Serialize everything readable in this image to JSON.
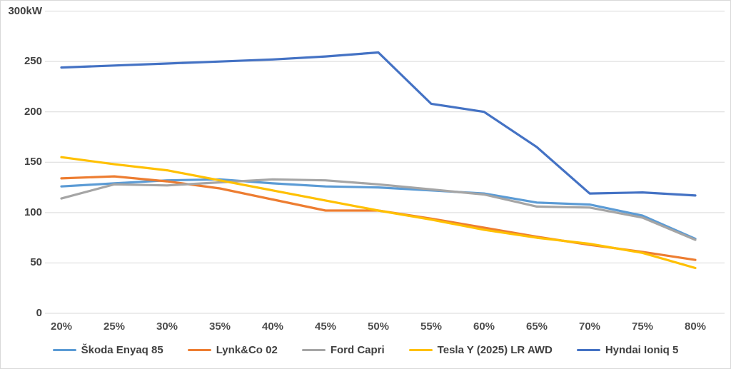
{
  "chart_data": {
    "type": "line",
    "title": "",
    "xlabel": "",
    "ylabel": "300kW",
    "grid": true,
    "legend_position": "bottom",
    "categories": [
      "20%",
      "25%",
      "30%",
      "35%",
      "40%",
      "45%",
      "50%",
      "55%",
      "60%",
      "65%",
      "70%",
      "75%",
      "80%"
    ],
    "y_axis": {
      "min": 0,
      "max": 300,
      "step": 50,
      "ticks": [
        {
          "label": "300kW",
          "value": 300
        },
        {
          "label": "250",
          "value": 250
        },
        {
          "label": "200",
          "value": 200
        },
        {
          "label": "150",
          "value": 150
        },
        {
          "label": "100",
          "value": 100
        },
        {
          "label": "50",
          "value": 50
        },
        {
          "label": "0",
          "value": 0
        }
      ]
    },
    "series": [
      {
        "name": "Škoda Enyaq 85",
        "color": "#5B9BD5",
        "values": [
          126,
          129,
          132,
          133,
          129,
          126,
          125,
          122,
          119,
          110,
          108,
          97,
          74
        ]
      },
      {
        "name": "Lynk&Co 02",
        "color": "#ED7D31",
        "values": [
          134,
          136,
          131,
          124,
          113,
          102,
          102,
          94,
          85,
          76,
          68,
          61,
          53
        ]
      },
      {
        "name": "Ford Capri",
        "color": "#A5A5A5",
        "values": [
          114,
          128,
          127,
          130,
          133,
          132,
          128,
          123,
          118,
          106,
          105,
          95,
          73
        ]
      },
      {
        "name": "Tesla Y (2025) LR AWD",
        "color": "#FFC000",
        "values": [
          155,
          148,
          142,
          132,
          122,
          112,
          102,
          93,
          83,
          75,
          69,
          60,
          45
        ]
      },
      {
        "name": "Hyndai Ioniq 5",
        "color": "#4472C4",
        "values": [
          244,
          246,
          248,
          250,
          252,
          255,
          259,
          208,
          200,
          165,
          119,
          120,
          117
        ]
      }
    ],
    "gridline_color": "#D9D9D9",
    "text_color": "#404040"
  }
}
